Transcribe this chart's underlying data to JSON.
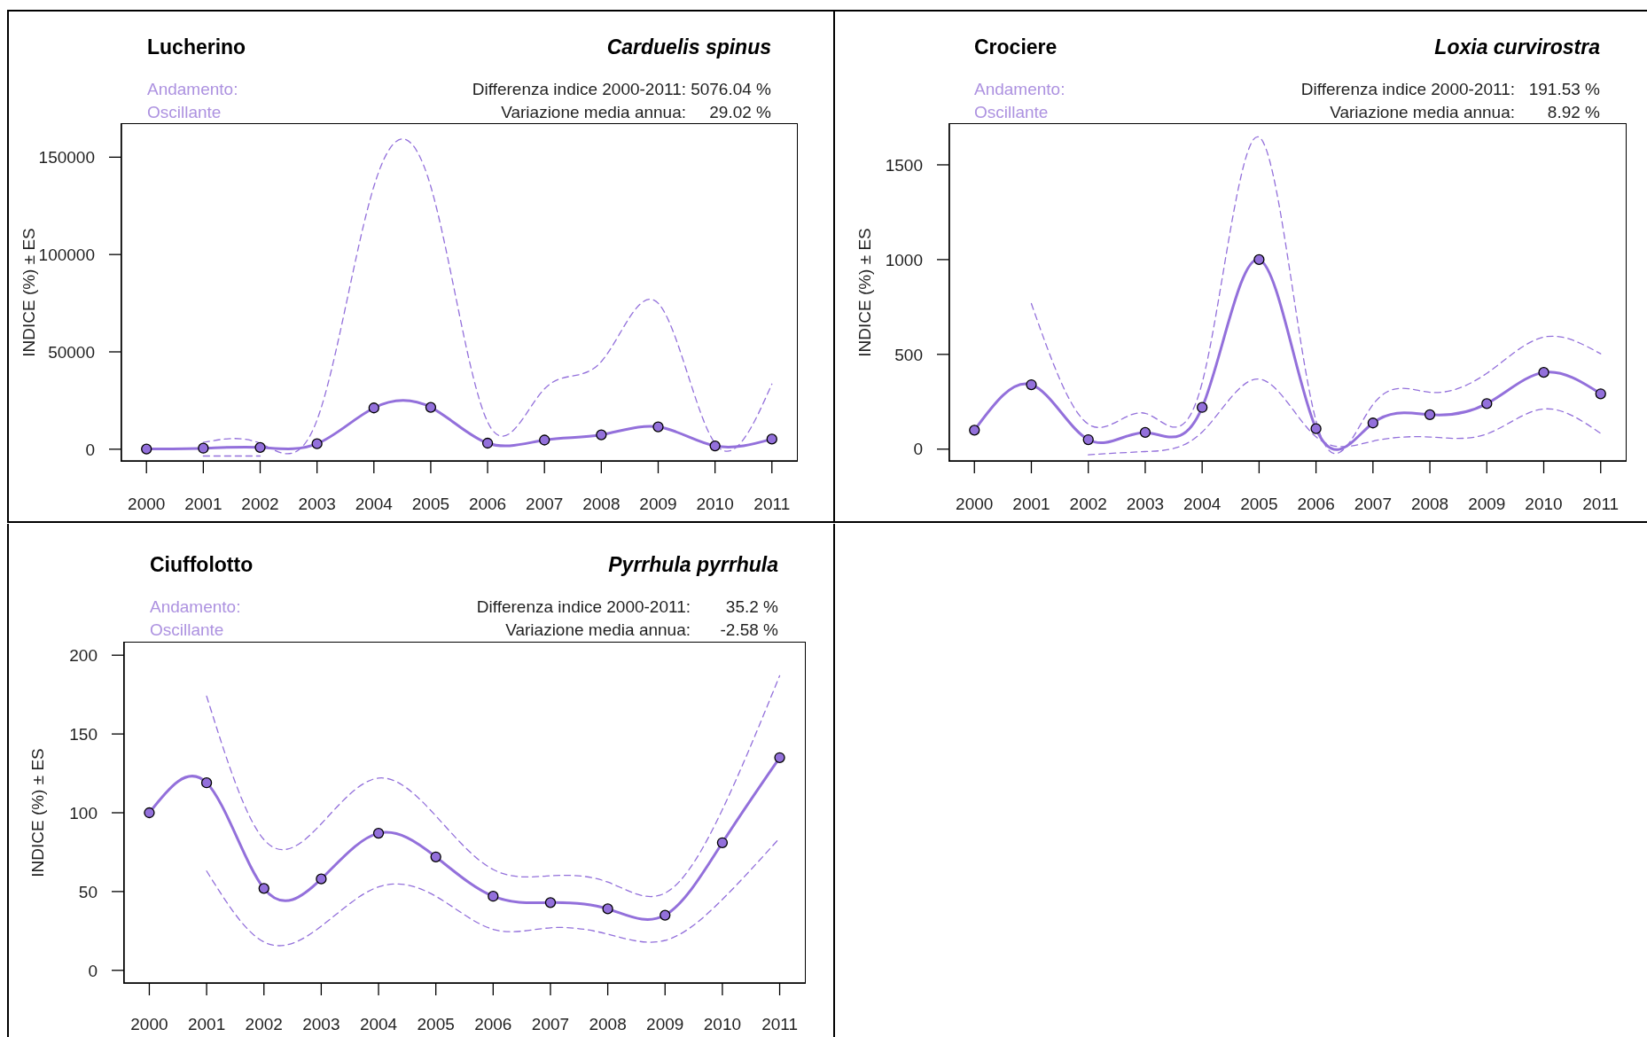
{
  "chart_data": [
    {
      "type": "line",
      "title": "Lucherino",
      "subtitle": "Carduelis spinus",
      "ylabel": "INDICE (%) ± ES",
      "annotations": [
        "Andamento:",
        "Oscillante",
        "Differenza indice 2000-2011:",
        "5076.04 %",
        "Variazione media annua:",
        "29.02 %"
      ],
      "x": [
        2000,
        2001,
        2002,
        2003,
        2004,
        2005,
        2006,
        2007,
        2008,
        2009,
        2010,
        2011
      ],
      "xlim": [
        1999.56,
        2011.44
      ],
      "xticks": [
        2000,
        2001,
        2002,
        2003,
        2004,
        2005,
        2006,
        2007,
        2008,
        2009,
        2010,
        2011
      ],
      "ylim": [
        -6000,
        167000
      ],
      "yticks": [
        0,
        50000,
        100000,
        150000
      ],
      "series": [
        {
          "color": "#9370db",
          "marker": "circle",
          "line_style": "solid",
          "values": [
            100,
            500,
            900,
            2800,
            21200,
            21500,
            3100,
            4700,
            7400,
            11500,
            1700,
            5200
          ]
        },
        {
          "color": "#9370db",
          "marker": "none",
          "line_style": "dashed",
          "values": [
            null,
            3500,
            3000,
            15000,
            135000,
            135000,
            14000,
            31000,
            45000,
            75000,
            3000,
            33500
          ]
        },
        {
          "color": "#9370db",
          "marker": "none",
          "line_style": "dashed",
          "values": [
            null,
            -3500,
            -3500,
            null,
            null,
            null,
            null,
            null,
            null,
            null,
            null,
            null
          ]
        }
      ]
    },
    {
      "type": "line",
      "title": "Crociere",
      "subtitle": "Loxia curvirostra",
      "ylabel": "INDICE (%) ± ES",
      "annotations": [
        "Andamento:",
        "Oscillante",
        "Differenza indice 2000-2011:",
        "191.53 %",
        "Variazione media annua:",
        "8.92 %"
      ],
      "x": [
        2000,
        2001,
        2002,
        2003,
        2004,
        2005,
        2006,
        2007,
        2008,
        2009,
        2010,
        2011
      ],
      "xlim": [
        1999.56,
        2011.44
      ],
      "xticks": [
        2000,
        2001,
        2002,
        2003,
        2004,
        2005,
        2006,
        2007,
        2008,
        2009,
        2010,
        2011
      ],
      "ylim": [
        -62,
        1715
      ],
      "yticks": [
        0,
        500,
        1000,
        1500
      ],
      "series": [
        {
          "color": "#9370db",
          "marker": "circle",
          "line_style": "solid",
          "values": [
            100,
            340,
            50,
            88,
            220,
            1000,
            108,
            138,
            182,
            240,
            405,
            292
          ]
        },
        {
          "color": "#9370db",
          "marker": "none",
          "line_style": "dashed",
          "values": [
            null,
            768,
            132,
            189,
            350,
            1646,
            150,
            235,
            300,
            400,
            591,
            503
          ]
        },
        {
          "color": "#9370db",
          "marker": "none",
          "line_style": "dashed",
          "values": [
            null,
            null,
            -30,
            -13,
            90,
            370,
            65,
            42,
            64,
            80,
            212,
            83
          ]
        }
      ]
    },
    {
      "type": "line",
      "title": "Ciuffolotto",
      "subtitle": "Pyrrhula pyrrhula",
      "ylabel": "INDICE (%) ± ES",
      "annotations": [
        "Andamento:",
        "Oscillante",
        "Differenza indice 2000-2011:",
        "35.2 %",
        "Variazione media annua:",
        "-2.58 %"
      ],
      "x": [
        2000,
        2001,
        2002,
        2003,
        2004,
        2005,
        2006,
        2007,
        2008,
        2009,
        2010,
        2011
      ],
      "xlim": [
        1999.56,
        2011.44
      ],
      "xticks": [
        2000,
        2001,
        2002,
        2003,
        2004,
        2005,
        2006,
        2007,
        2008,
        2009,
        2010,
        2011
      ],
      "ylim": [
        -8,
        208
      ],
      "yticks": [
        0,
        50,
        100,
        150,
        200
      ],
      "series": [
        {
          "color": "#9370db",
          "marker": "circle",
          "line_style": "solid",
          "values": [
            100,
            119,
            52,
            58,
            87,
            72,
            47,
            43,
            39,
            35,
            81,
            135
          ]
        },
        {
          "color": "#9370db",
          "marker": "none",
          "line_style": "dashed",
          "values": [
            null,
            174,
            83,
            93,
            122,
            98,
            64,
            60,
            56,
            49,
            102,
            187
          ]
        },
        {
          "color": "#9370db",
          "marker": "none",
          "line_style": "dashed",
          "values": [
            null,
            63,
            18,
            28,
            53,
            47,
            26,
            27,
            23,
            19,
            45,
            84
          ]
        }
      ]
    }
  ]
}
